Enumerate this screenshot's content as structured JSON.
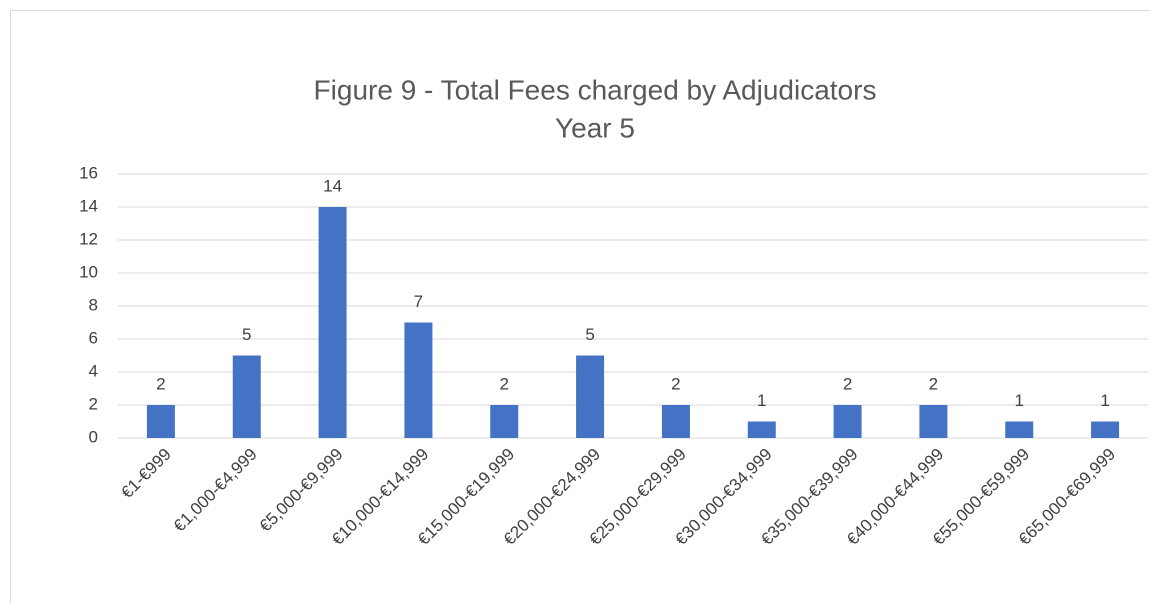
{
  "chart_data": {
    "type": "bar",
    "title": [
      "Figure 9 - Total Fees charged by Adjudicators",
      "Year 5"
    ],
    "categories": [
      "€1-€999",
      "€1,000-€4,999",
      "€5,000-€9,999",
      "€10,000-€14,999",
      "€15,000-€19,999",
      "€20,000-€24,999",
      "€25,000-€29,999",
      "€30,000-€34,999",
      "€35,000-€39,999",
      "€40,000-€44,999",
      "€55,000-€59,999",
      "€65,000-€69,999"
    ],
    "values": [
      2,
      5,
      14,
      7,
      2,
      5,
      2,
      1,
      2,
      2,
      1,
      1
    ],
    "color": "#4472c4",
    "ylim": [
      0,
      16
    ],
    "yticks": [
      0,
      2,
      4,
      6,
      8,
      10,
      12,
      14,
      16
    ],
    "grid": true
  }
}
